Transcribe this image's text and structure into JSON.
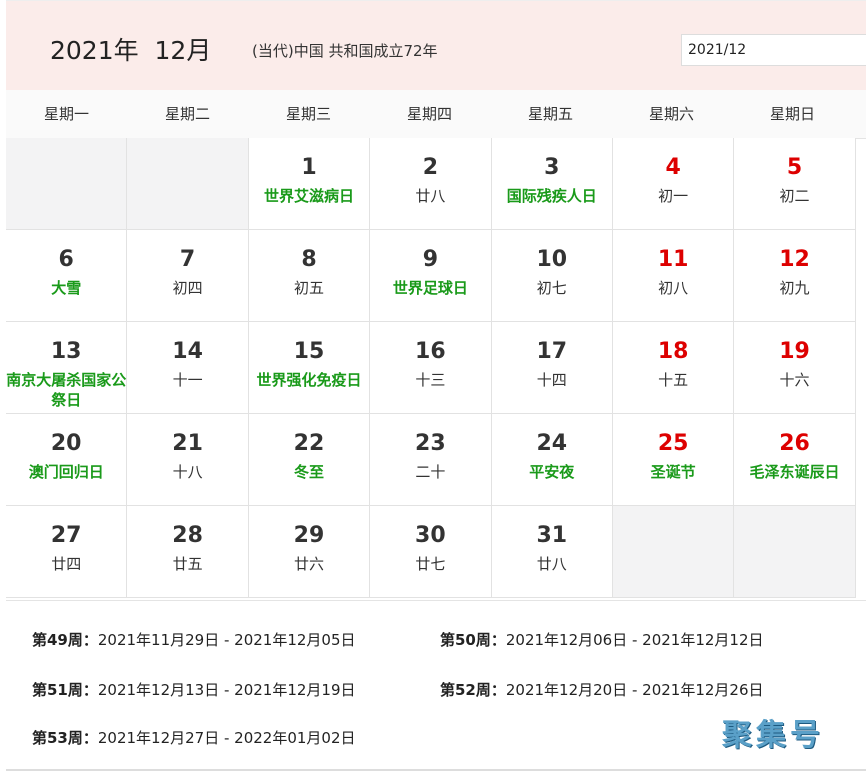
{
  "header": {
    "title": "2021年  12月",
    "subtitle": "(当代)中国 共和国成立72年",
    "date_input_value": "2021/12"
  },
  "weekdays": [
    "星期一",
    "星期二",
    "星期三",
    "星期四",
    "星期五",
    "星期六",
    "星期日"
  ],
  "colors": {
    "weekend": "#dd0000",
    "festival": "#1a9a1a",
    "header_bg": "#fbecea"
  },
  "leading_empty": 2,
  "trailing_empty": 2,
  "days": [
    {
      "d": "1",
      "sub": "世界艾滋病日",
      "festival": true
    },
    {
      "d": "2",
      "sub": "廿八"
    },
    {
      "d": "3",
      "sub": "国际残疾人日",
      "festival": true
    },
    {
      "d": "4",
      "sub": "初一",
      "weekend": true
    },
    {
      "d": "5",
      "sub": "初二",
      "weekend": true
    },
    {
      "d": "6",
      "sub": "大雪",
      "festival": true
    },
    {
      "d": "7",
      "sub": "初四"
    },
    {
      "d": "8",
      "sub": "初五"
    },
    {
      "d": "9",
      "sub": "世界足球日",
      "festival": true
    },
    {
      "d": "10",
      "sub": "初七"
    },
    {
      "d": "11",
      "sub": "初八",
      "weekend": true
    },
    {
      "d": "12",
      "sub": "初九",
      "weekend": true
    },
    {
      "d": "13",
      "sub": "南京大屠杀国家公祭日",
      "festival": true
    },
    {
      "d": "14",
      "sub": "十一"
    },
    {
      "d": "15",
      "sub": "世界强化免疫日",
      "festival": true
    },
    {
      "d": "16",
      "sub": "十三"
    },
    {
      "d": "17",
      "sub": "十四"
    },
    {
      "d": "18",
      "sub": "十五",
      "weekend": true
    },
    {
      "d": "19",
      "sub": "十六",
      "weekend": true
    },
    {
      "d": "20",
      "sub": "澳门回归日",
      "festival": true
    },
    {
      "d": "21",
      "sub": "十八"
    },
    {
      "d": "22",
      "sub": "冬至",
      "festival": true
    },
    {
      "d": "23",
      "sub": "二十"
    },
    {
      "d": "24",
      "sub": "平安夜",
      "festival": true
    },
    {
      "d": "25",
      "sub": "圣诞节",
      "festival": true,
      "weekend": true
    },
    {
      "d": "26",
      "sub": "毛泽东诞辰日",
      "festival": true,
      "weekend": true
    },
    {
      "d": "27",
      "sub": "廿四"
    },
    {
      "d": "28",
      "sub": "廿五"
    },
    {
      "d": "29",
      "sub": "廿六"
    },
    {
      "d": "30",
      "sub": "廿七"
    },
    {
      "d": "31",
      "sub": "廿八"
    }
  ],
  "weeks": [
    {
      "label": "第49周：",
      "range": "2021年11月29日 - 2021年12月05日"
    },
    {
      "label": "第50周：",
      "range": "2021年12月06日 - 2021年12月12日"
    },
    {
      "label": "第51周：",
      "range": "2021年12月13日 - 2021年12月19日"
    },
    {
      "label": "第52周：",
      "range": "2021年12月20日 - 2021年12月26日"
    },
    {
      "label": "第53周：",
      "range": "2021年12月27日 - 2022年01月02日"
    }
  ],
  "watermark": "聚集号"
}
